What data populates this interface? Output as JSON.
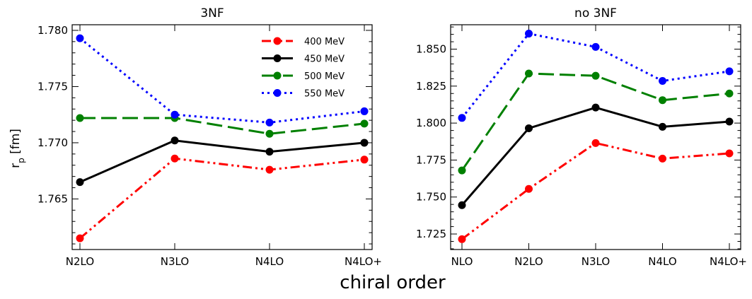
{
  "figure": {
    "xlabel": "chiral order",
    "ylabel": "r",
    "ylabel_sub": "p",
    "ylabel_unit": " [fm]"
  },
  "chart_data": [
    {
      "type": "line",
      "title": "3NF",
      "categories": [
        "N2LO",
        "N3LO",
        "N4LO",
        "N4LO+"
      ],
      "ylim": [
        1.7605,
        1.7805
      ],
      "yticks": [
        "1.765",
        "1.770",
        "1.775",
        "1.780"
      ],
      "ytick_values": [
        1.765,
        1.77,
        1.775,
        1.78
      ],
      "legend_position": "top-right",
      "series": [
        {
          "name": "400 MeV",
          "color": "#ff0000",
          "dash": "dash-dot-dot",
          "values": [
            1.7615,
            1.7686,
            1.7676,
            1.7685
          ]
        },
        {
          "name": "450 MeV",
          "color": "#000000",
          "dash": "solid",
          "values": [
            1.7665,
            1.7702,
            1.7692,
            1.77
          ]
        },
        {
          "name": "500 MeV",
          "color": "#008000",
          "dash": "dashed",
          "values": [
            1.7722,
            1.7722,
            1.7708,
            1.7717
          ]
        },
        {
          "name": "550 MeV",
          "color": "#0000ff",
          "dash": "dotted",
          "values": [
            1.7793,
            1.7725,
            1.7718,
            1.7728
          ]
        }
      ]
    },
    {
      "type": "line",
      "title": "no 3NF",
      "categories": [
        "NLO",
        "N2LO",
        "N3LO",
        "N4LO",
        "N4LO+"
      ],
      "ylim": [
        1.7145,
        1.8665
      ],
      "yticks": [
        "1.725",
        "1.750",
        "1.775",
        "1.800",
        "1.825",
        "1.850"
      ],
      "ytick_values": [
        1.725,
        1.75,
        1.775,
        1.8,
        1.825,
        1.85
      ],
      "series": [
        {
          "name": "400 MeV",
          "color": "#ff0000",
          "dash": "dash-dot-dot",
          "values": [
            1.7215,
            1.7555,
            1.7865,
            1.776,
            1.7795
          ]
        },
        {
          "name": "450 MeV",
          "color": "#000000",
          "dash": "solid",
          "values": [
            1.7445,
            1.7965,
            1.8105,
            1.7975,
            1.801
          ]
        },
        {
          "name": "500 MeV",
          "color": "#008000",
          "dash": "dashed",
          "values": [
            1.768,
            1.8335,
            1.832,
            1.8155,
            1.82
          ]
        },
        {
          "name": "550 MeV",
          "color": "#0000ff",
          "dash": "dotted",
          "values": [
            1.8035,
            1.8605,
            1.8515,
            1.8285,
            1.835
          ]
        }
      ]
    }
  ]
}
